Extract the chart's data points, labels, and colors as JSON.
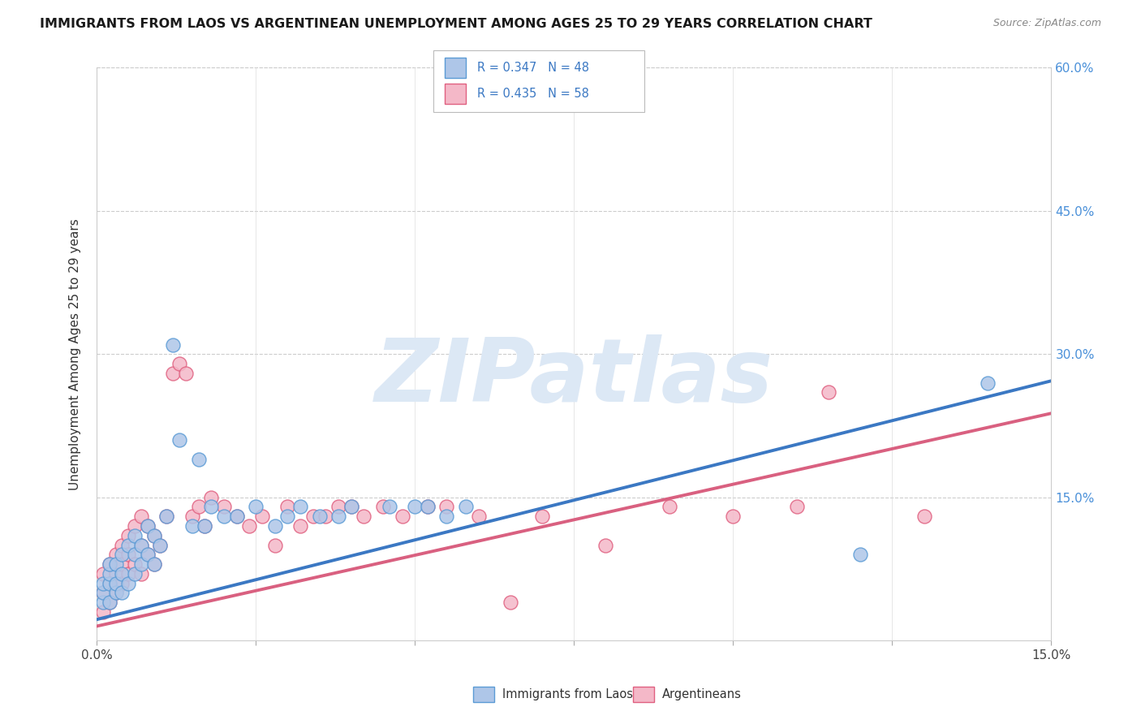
{
  "title": "IMMIGRANTS FROM LAOS VS ARGENTINEAN UNEMPLOYMENT AMONG AGES 25 TO 29 YEARS CORRELATION CHART",
  "source": "Source: ZipAtlas.com",
  "ylabel": "Unemployment Among Ages 25 to 29 years",
  "xlim": [
    0.0,
    0.15
  ],
  "ylim": [
    0.0,
    0.6
  ],
  "series1_color": "#aec6e8",
  "series1_edge": "#5b9bd5",
  "series2_color": "#f4b8c8",
  "series2_edge": "#e06080",
  "line1_color": "#3b78c3",
  "line2_color": "#d96080",
  "R1": 0.347,
  "N1": 48,
  "R2": 0.435,
  "N2": 58,
  "watermark": "ZIPatlas",
  "watermark_color": "#dce8f5",
  "legend_label1": "Immigrants from Laos",
  "legend_label2": "Argentineans",
  "blue_x": [
    0.001,
    0.001,
    0.001,
    0.002,
    0.002,
    0.002,
    0.002,
    0.003,
    0.003,
    0.003,
    0.004,
    0.004,
    0.004,
    0.005,
    0.005,
    0.006,
    0.006,
    0.006,
    0.007,
    0.007,
    0.008,
    0.008,
    0.009,
    0.009,
    0.01,
    0.011,
    0.012,
    0.013,
    0.015,
    0.016,
    0.017,
    0.018,
    0.02,
    0.022,
    0.025,
    0.028,
    0.03,
    0.032,
    0.035,
    0.038,
    0.04,
    0.046,
    0.05,
    0.052,
    0.055,
    0.058,
    0.12,
    0.14
  ],
  "blue_y": [
    0.04,
    0.05,
    0.06,
    0.04,
    0.06,
    0.07,
    0.08,
    0.05,
    0.06,
    0.08,
    0.05,
    0.07,
    0.09,
    0.06,
    0.1,
    0.07,
    0.09,
    0.11,
    0.08,
    0.1,
    0.09,
    0.12,
    0.08,
    0.11,
    0.1,
    0.13,
    0.31,
    0.21,
    0.12,
    0.19,
    0.12,
    0.14,
    0.13,
    0.13,
    0.14,
    0.12,
    0.13,
    0.14,
    0.13,
    0.13,
    0.14,
    0.14,
    0.14,
    0.14,
    0.13,
    0.14,
    0.09,
    0.27
  ],
  "pink_x": [
    0.001,
    0.001,
    0.001,
    0.002,
    0.002,
    0.002,
    0.003,
    0.003,
    0.003,
    0.004,
    0.004,
    0.004,
    0.005,
    0.005,
    0.005,
    0.006,
    0.006,
    0.007,
    0.007,
    0.007,
    0.008,
    0.008,
    0.009,
    0.009,
    0.01,
    0.011,
    0.012,
    0.013,
    0.014,
    0.015,
    0.016,
    0.017,
    0.018,
    0.02,
    0.022,
    0.024,
    0.026,
    0.028,
    0.03,
    0.032,
    0.034,
    0.036,
    0.038,
    0.04,
    0.042,
    0.045,
    0.048,
    0.052,
    0.055,
    0.06,
    0.065,
    0.07,
    0.08,
    0.09,
    0.1,
    0.11,
    0.115,
    0.13
  ],
  "pink_y": [
    0.03,
    0.05,
    0.07,
    0.04,
    0.06,
    0.08,
    0.05,
    0.07,
    0.09,
    0.06,
    0.08,
    0.1,
    0.07,
    0.09,
    0.11,
    0.08,
    0.12,
    0.07,
    0.1,
    0.13,
    0.09,
    0.12,
    0.08,
    0.11,
    0.1,
    0.13,
    0.28,
    0.29,
    0.28,
    0.13,
    0.14,
    0.12,
    0.15,
    0.14,
    0.13,
    0.12,
    0.13,
    0.1,
    0.14,
    0.12,
    0.13,
    0.13,
    0.14,
    0.14,
    0.13,
    0.14,
    0.13,
    0.14,
    0.14,
    0.13,
    0.04,
    0.13,
    0.1,
    0.14,
    0.13,
    0.14,
    0.26,
    0.13
  ],
  "line1_x0": 0.0,
  "line1_y0": 0.022,
  "line1_x1": 0.15,
  "line1_y1": 0.272,
  "line2_x0": 0.0,
  "line2_y0": 0.015,
  "line2_x1": 0.15,
  "line2_y1": 0.238
}
